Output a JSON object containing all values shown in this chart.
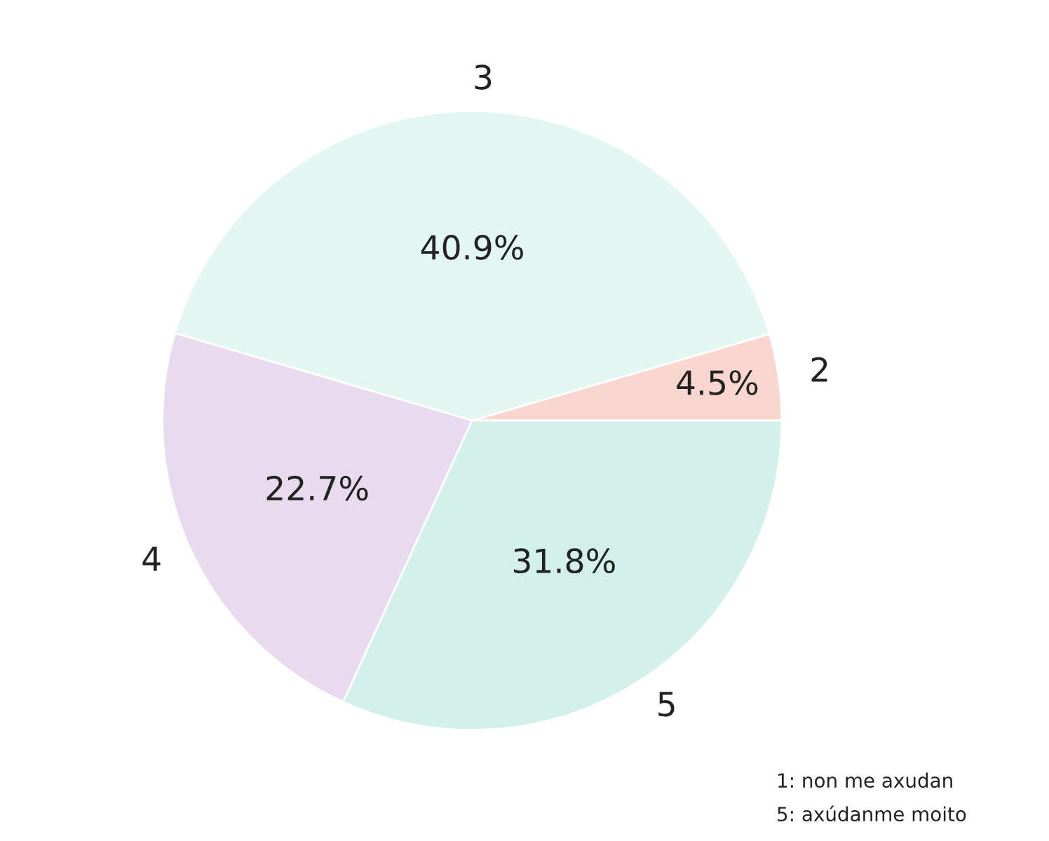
{
  "chart_data": {
    "type": "pie",
    "categories": [
      "2",
      "3",
      "4",
      "5"
    ],
    "values": [
      4.5,
      40.9,
      22.7,
      31.8
    ],
    "colors": [
      "#f9d6d0",
      "#e3f6f2",
      "#e9daef",
      "#d3f1ea"
    ],
    "value_labels": [
      "4.5%",
      "40.9%",
      "22.7%",
      "31.8%"
    ],
    "annotations": [
      "1: non me axudan",
      "5: axúdanme moito"
    ]
  }
}
